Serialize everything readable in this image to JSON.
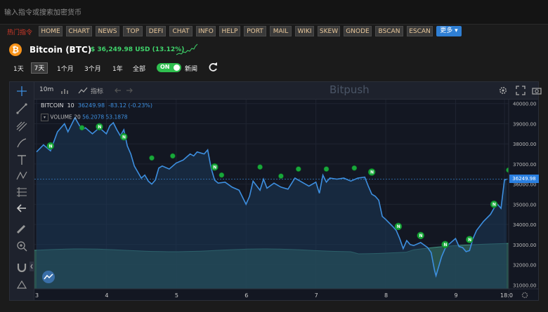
{
  "search": {
    "placeholder": "输入指令或搜索加密货币"
  },
  "command_bar": {
    "hot_label": "热门指令",
    "items": [
      "HOME",
      "CHART",
      "NEWS",
      "TOP",
      "DEFI",
      "CHAT",
      "INFO",
      "HELP",
      "PORT",
      "MAIL",
      "WIKI",
      "SKEW",
      "GNODE",
      "BSCAN",
      "ESCAN"
    ],
    "more_label": "更多 ▾"
  },
  "coin": {
    "name": "Bitcoin (BTC)",
    "price_text": "$ 36,249.98 USD (13.12%)",
    "logo_glyph": "₿",
    "logo_color": "#f7931a",
    "up_color": "#3fd46b"
  },
  "ranges": {
    "d1": "1天",
    "d7": "7天",
    "m1": "1个月",
    "m3": "3个月",
    "y1": "1年",
    "all": "全部",
    "selected": "7天"
  },
  "news_toggle": {
    "state": "ON",
    "label": "新闻"
  },
  "chart_toolbar": {
    "interval": "10m",
    "indicators": "指标",
    "watermark": "Bitpush"
  },
  "legend": {
    "symbol": "BITCOIN",
    "interval": "10",
    "price": "36249.98",
    "change": "-83.12 (-0.23%)",
    "volume_label": "VOLUME",
    "volume_period": "20",
    "volume_value": "56.2078",
    "volume_ma": "53.1878"
  },
  "chart_data": {
    "type": "line",
    "x_ticks": [
      "3",
      "4",
      "5",
      "6",
      "7",
      "8",
      "9",
      "18:0"
    ],
    "y_ticks": [
      "40000.00",
      "39000.00",
      "38000.00",
      "37000.00",
      "36000.00",
      "35000.00",
      "34000.00",
      "33000.00",
      "32000.00",
      "31000.00"
    ],
    "ylim": [
      30800,
      40200
    ],
    "last_price_label": "36249.98",
    "series": [
      {
        "values": [
          [
            3.0,
            37600
          ],
          [
            3.1,
            37950
          ],
          [
            3.2,
            37650
          ],
          [
            3.3,
            38600
          ],
          [
            3.4,
            39000
          ],
          [
            3.45,
            38600
          ],
          [
            3.55,
            39300
          ],
          [
            3.65,
            38700
          ],
          [
            3.7,
            38800
          ],
          [
            3.8,
            38500
          ],
          [
            3.9,
            38800
          ],
          [
            4.0,
            38500
          ],
          [
            4.05,
            38900
          ],
          [
            4.1,
            39050
          ],
          [
            4.15,
            38700
          ],
          [
            4.2,
            38400
          ],
          [
            4.25,
            38700
          ],
          [
            4.3,
            37900
          ],
          [
            4.35,
            37500
          ],
          [
            4.4,
            36900
          ],
          [
            4.5,
            36300
          ],
          [
            4.55,
            36450
          ],
          [
            4.6,
            36150
          ],
          [
            4.65,
            36000
          ],
          [
            4.7,
            36200
          ],
          [
            4.75,
            36800
          ],
          [
            4.8,
            36900
          ],
          [
            4.9,
            36750
          ],
          [
            5.0,
            37050
          ],
          [
            5.1,
            37200
          ],
          [
            5.15,
            37350
          ],
          [
            5.2,
            37500
          ],
          [
            5.25,
            37400
          ],
          [
            5.3,
            37600
          ],
          [
            5.4,
            37500
          ],
          [
            5.45,
            37700
          ],
          [
            5.5,
            36800
          ],
          [
            5.55,
            36200
          ],
          [
            5.6,
            36050
          ],
          [
            5.7,
            36100
          ],
          [
            5.8,
            35850
          ],
          [
            5.9,
            35700
          ],
          [
            6.0,
            35000
          ],
          [
            6.05,
            35400
          ],
          [
            6.1,
            36150
          ],
          [
            6.2,
            35700
          ],
          [
            6.25,
            36250
          ],
          [
            6.3,
            35800
          ],
          [
            6.4,
            36050
          ],
          [
            6.5,
            35850
          ],
          [
            6.6,
            35750
          ],
          [
            6.7,
            36300
          ],
          [
            6.8,
            36100
          ],
          [
            6.9,
            35900
          ],
          [
            7.0,
            36100
          ],
          [
            7.05,
            35550
          ],
          [
            7.1,
            36450
          ],
          [
            7.15,
            36100
          ],
          [
            7.2,
            36300
          ],
          [
            7.3,
            36250
          ],
          [
            7.4,
            36300
          ],
          [
            7.5,
            36150
          ],
          [
            7.6,
            36300
          ],
          [
            7.7,
            36350
          ],
          [
            7.75,
            35900
          ],
          [
            7.8,
            35500
          ],
          [
            7.85,
            35400
          ],
          [
            7.9,
            35200
          ],
          [
            7.95,
            34400
          ],
          [
            8.0,
            34250
          ],
          [
            8.1,
            33900
          ],
          [
            8.15,
            33700
          ],
          [
            8.2,
            33300
          ],
          [
            8.25,
            32800
          ],
          [
            8.3,
            33200
          ],
          [
            8.35,
            33000
          ],
          [
            8.4,
            32950
          ],
          [
            8.5,
            33100
          ],
          [
            8.6,
            32850
          ],
          [
            8.65,
            32600
          ],
          [
            8.7,
            31700
          ],
          [
            8.72,
            31450
          ],
          [
            8.8,
            32400
          ],
          [
            8.85,
            32800
          ],
          [
            8.9,
            33000
          ],
          [
            9.0,
            33300
          ],
          [
            9.05,
            32900
          ],
          [
            9.1,
            32850
          ],
          [
            9.15,
            32650
          ],
          [
            9.2,
            32700
          ],
          [
            9.25,
            33300
          ],
          [
            9.3,
            33700
          ],
          [
            9.4,
            34150
          ],
          [
            9.5,
            34500
          ],
          [
            9.55,
            34800
          ],
          [
            9.6,
            35000
          ],
          [
            9.65,
            34800
          ],
          [
            9.7,
            36200
          ],
          [
            9.73,
            36249.98
          ]
        ]
      }
    ],
    "markers": [
      [
        3.2,
        37900,
        "N"
      ],
      [
        3.65,
        38800,
        ""
      ],
      [
        3.9,
        38850,
        "N"
      ],
      [
        4.25,
        38350,
        "N"
      ],
      [
        4.65,
        37300,
        ""
      ],
      [
        4.95,
        37400,
        ""
      ],
      [
        5.55,
        36850,
        "N"
      ],
      [
        5.65,
        36450,
        ""
      ],
      [
        6.2,
        36850,
        ""
      ],
      [
        6.5,
        36400,
        ""
      ],
      [
        6.75,
        36750,
        ""
      ],
      [
        7.15,
        36750,
        ""
      ],
      [
        7.55,
        36800,
        ""
      ],
      [
        7.8,
        36600,
        "N"
      ],
      [
        8.18,
        33900,
        "N"
      ],
      [
        8.5,
        33450,
        "N"
      ],
      [
        8.85,
        33000,
        "N"
      ],
      [
        9.2,
        33250,
        "N"
      ],
      [
        9.55,
        35000,
        "N"
      ],
      [
        9.76,
        36700,
        ""
      ]
    ]
  }
}
